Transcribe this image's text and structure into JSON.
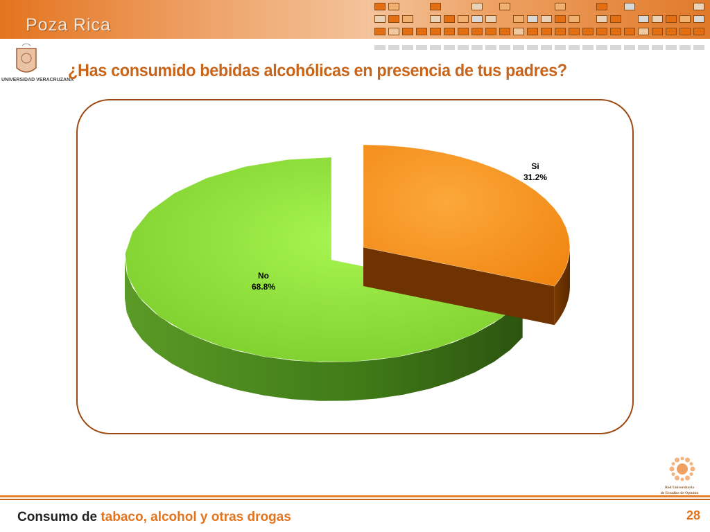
{
  "header": {
    "brand": "Poza Rica"
  },
  "logos": {
    "left": "UNIVERSIDAD VERACRUZANA",
    "right_line1": "Red Universitaria",
    "right_line2": "de Estudios de Opinión"
  },
  "title": "¿Has consumido bebidas alcohólicas en presencia de tus padres?",
  "chart_data": {
    "type": "pie",
    "style": "3d-exploded",
    "title": "",
    "slices": [
      {
        "label": "Si",
        "value": 31.2,
        "value_label": "31.2%",
        "color": "#f7931e",
        "side_color": "#6e3300",
        "exploded": true
      },
      {
        "label": "No",
        "value": 68.8,
        "value_label": "68.8%",
        "color": "#8ee03c",
        "side_color": "#3f7a17",
        "exploded": false
      }
    ]
  },
  "footer": {
    "prefix": "Consumo de",
    "topic": "tabaco, alcohol y otras drogas",
    "page": "28"
  },
  "colors": {
    "accent": "#e3741e",
    "frame": "#9b4a12",
    "title": "#c8651b"
  }
}
